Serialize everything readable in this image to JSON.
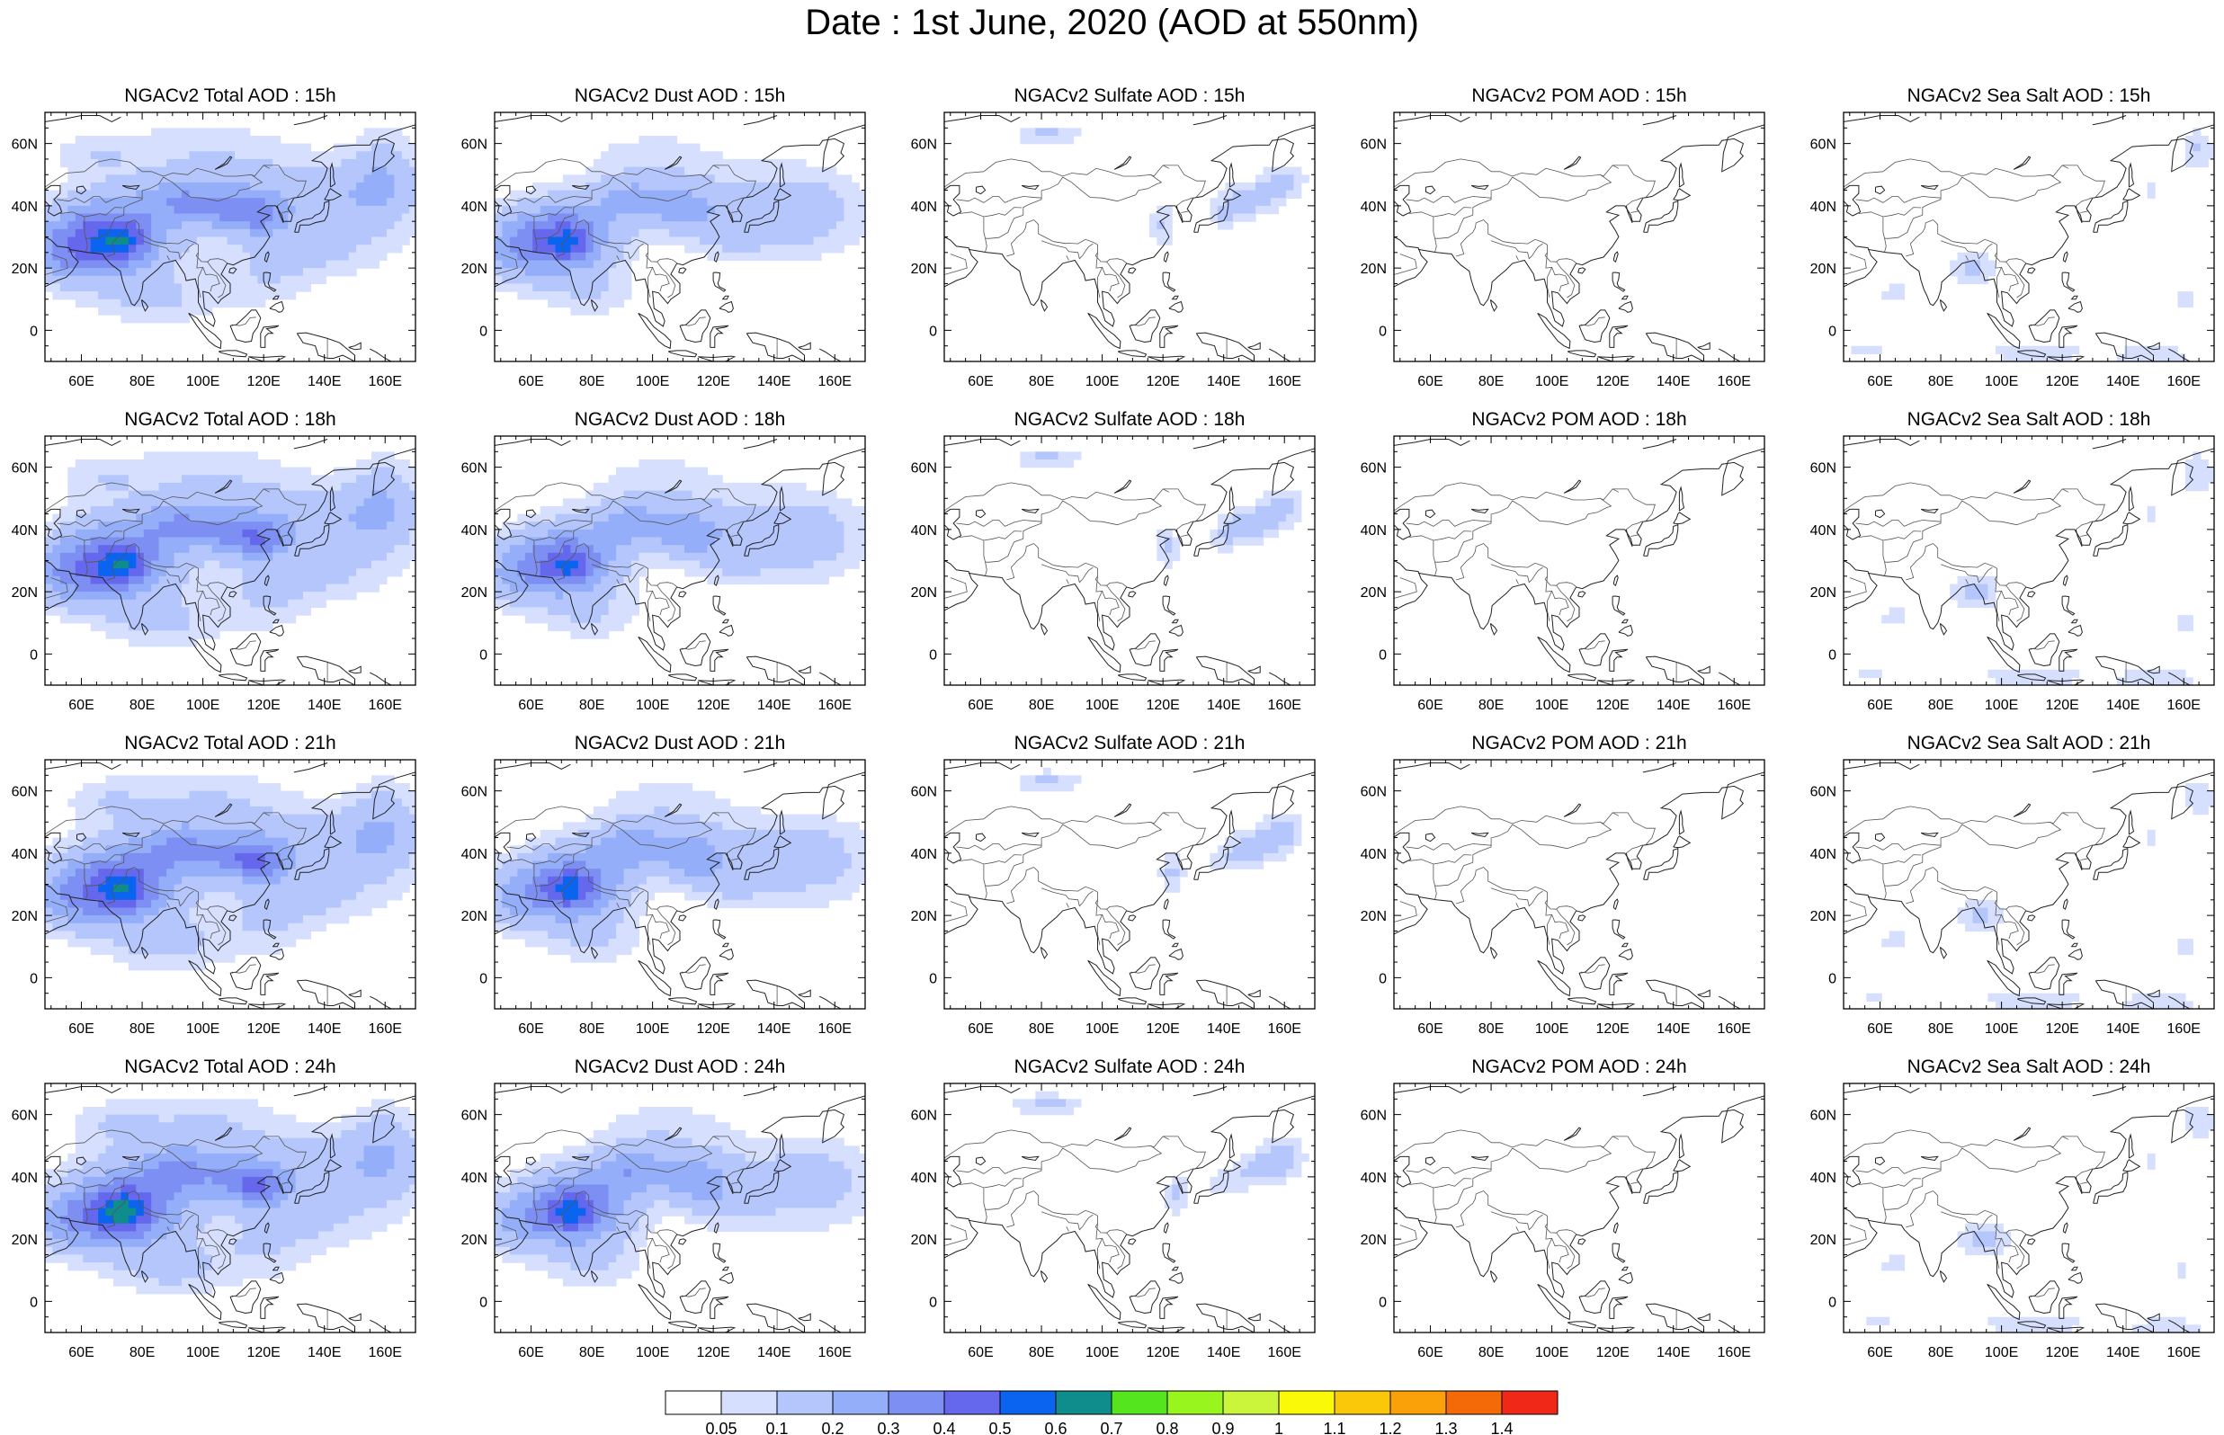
{
  "title": "Date : 1st June, 2020 (AOD at 550nm)",
  "x_ticks": [
    "60E",
    "80E",
    "100E",
    "120E",
    "140E",
    "160E"
  ],
  "y_ticks": [
    "60N",
    "40N",
    "20N",
    "0"
  ],
  "columns": [
    {
      "key": "total",
      "scale": 1.0
    },
    {
      "key": "dust",
      "scale": 0.85
    },
    {
      "key": "sulfate",
      "scale": 0.0
    },
    {
      "key": "pom",
      "scale": 0.0
    },
    {
      "key": "seasalt",
      "scale": 0.0
    }
  ],
  "panels": [
    [
      "NGACv2 Total AOD : 15h",
      "NGACv2 Dust AOD : 15h",
      "NGACv2 Sulfate AOD : 15h",
      "NGACv2 POM AOD : 15h",
      "NGACv2 Sea Salt AOD : 15h"
    ],
    [
      "NGACv2 Total AOD : 18h",
      "NGACv2 Dust AOD : 18h",
      "NGACv2 Sulfate AOD : 18h",
      "NGACv2 POM AOD : 18h",
      "NGACv2 Sea Salt AOD : 18h"
    ],
    [
      "NGACv2 Total AOD : 21h",
      "NGACv2 Dust AOD : 21h",
      "NGACv2 Sulfate AOD : 21h",
      "NGACv2 POM AOD : 21h",
      "NGACv2 Sea Salt AOD : 21h"
    ],
    [
      "NGACv2 Total AOD : 24h",
      "NGACv2 Dust AOD : 24h",
      "NGACv2 Sulfate AOD : 24h",
      "NGACv2 POM AOD : 24h",
      "NGACv2 Sea Salt  AOD : 24h"
    ]
  ],
  "colorbar": {
    "labels": [
      "0.05",
      "0.1",
      "0.2",
      "0.3",
      "0.4",
      "0.5",
      "0.6",
      "0.7",
      "0.8",
      "0.9",
      "1",
      "1.1",
      "1.2",
      "1.3",
      "1.4"
    ],
    "colors": [
      "#ffffff",
      "#d6e0fe",
      "#b4c6fc",
      "#94aef9",
      "#7e8ff3",
      "#6568ec",
      "#0a64f0",
      "#0f8c8c",
      "#55e51e",
      "#98f51e",
      "#caf53a",
      "#fafa08",
      "#fac808",
      "#faa008",
      "#f56a08",
      "#f02818"
    ]
  },
  "chart_data": {
    "type": "heatmap",
    "title": "Date : 1st June, 2020 (AOD at 550nm)",
    "x_range": [
      "~48E",
      "~170E"
    ],
    "y_range": [
      "~10S",
      "~70N"
    ],
    "panels": [
      {
        "variable": "Total AOD",
        "hours": [
          "15h",
          "18h",
          "21h",
          "24h"
        ],
        "max_level": 0.6,
        "regions": [
          {
            "where": "northwest India / Pakistan",
            "aod": 0.5
          },
          {
            "where": "Arabian Sea / Middle East",
            "aod": 0.3
          },
          {
            "where": "north China plain",
            "aod": 0.4
          },
          {
            "where": "Mongolia / Northeast Asia",
            "aod": 0.2
          },
          {
            "where": "Northwest Pacific plume",
            "aod": 0.2
          },
          {
            "where": "South China Sea",
            "aod": 0.1
          }
        ]
      },
      {
        "variable": "Dust AOD",
        "hours": [
          "15h",
          "18h",
          "21h",
          "24h"
        ],
        "max_level": 0.5,
        "regions": [
          {
            "where": "northwest India / Pakistan",
            "aod": 0.4
          },
          {
            "where": "Arabian Sea / Middle East",
            "aod": 0.3
          },
          {
            "where": "north China plain",
            "aod": 0.3
          },
          {
            "where": "Northwest Pacific plume",
            "aod": 0.2
          }
        ]
      },
      {
        "variable": "Sulfate AOD",
        "hours": [
          "15h",
          "18h",
          "21h",
          "24h"
        ],
        "max_level": 0.2,
        "regions": [
          {
            "where": "Japan / Northwest Pacific",
            "aod": 0.1
          },
          {
            "where": "West Siberia",
            "aod": 0.1
          },
          {
            "where": "East China",
            "aod": 0.1
          }
        ]
      },
      {
        "variable": "POM AOD",
        "hours": [
          "15h",
          "18h",
          "21h",
          "24h"
        ],
        "max_level": 0.05,
        "regions": []
      },
      {
        "variable": "Sea Salt AOD",
        "hours": [
          "15h",
          "18h",
          "21h",
          "24h"
        ],
        "max_level": 0.2,
        "regions": [
          {
            "where": "Bay of Bengal",
            "aod": 0.1
          },
          {
            "where": "Arabian Sea",
            "aod": 0.05
          },
          {
            "where": "Southern Indian Ocean",
            "aod": 0.05
          },
          {
            "where": "Northwest Pacific",
            "aod": 0.05
          }
        ]
      }
    ]
  }
}
